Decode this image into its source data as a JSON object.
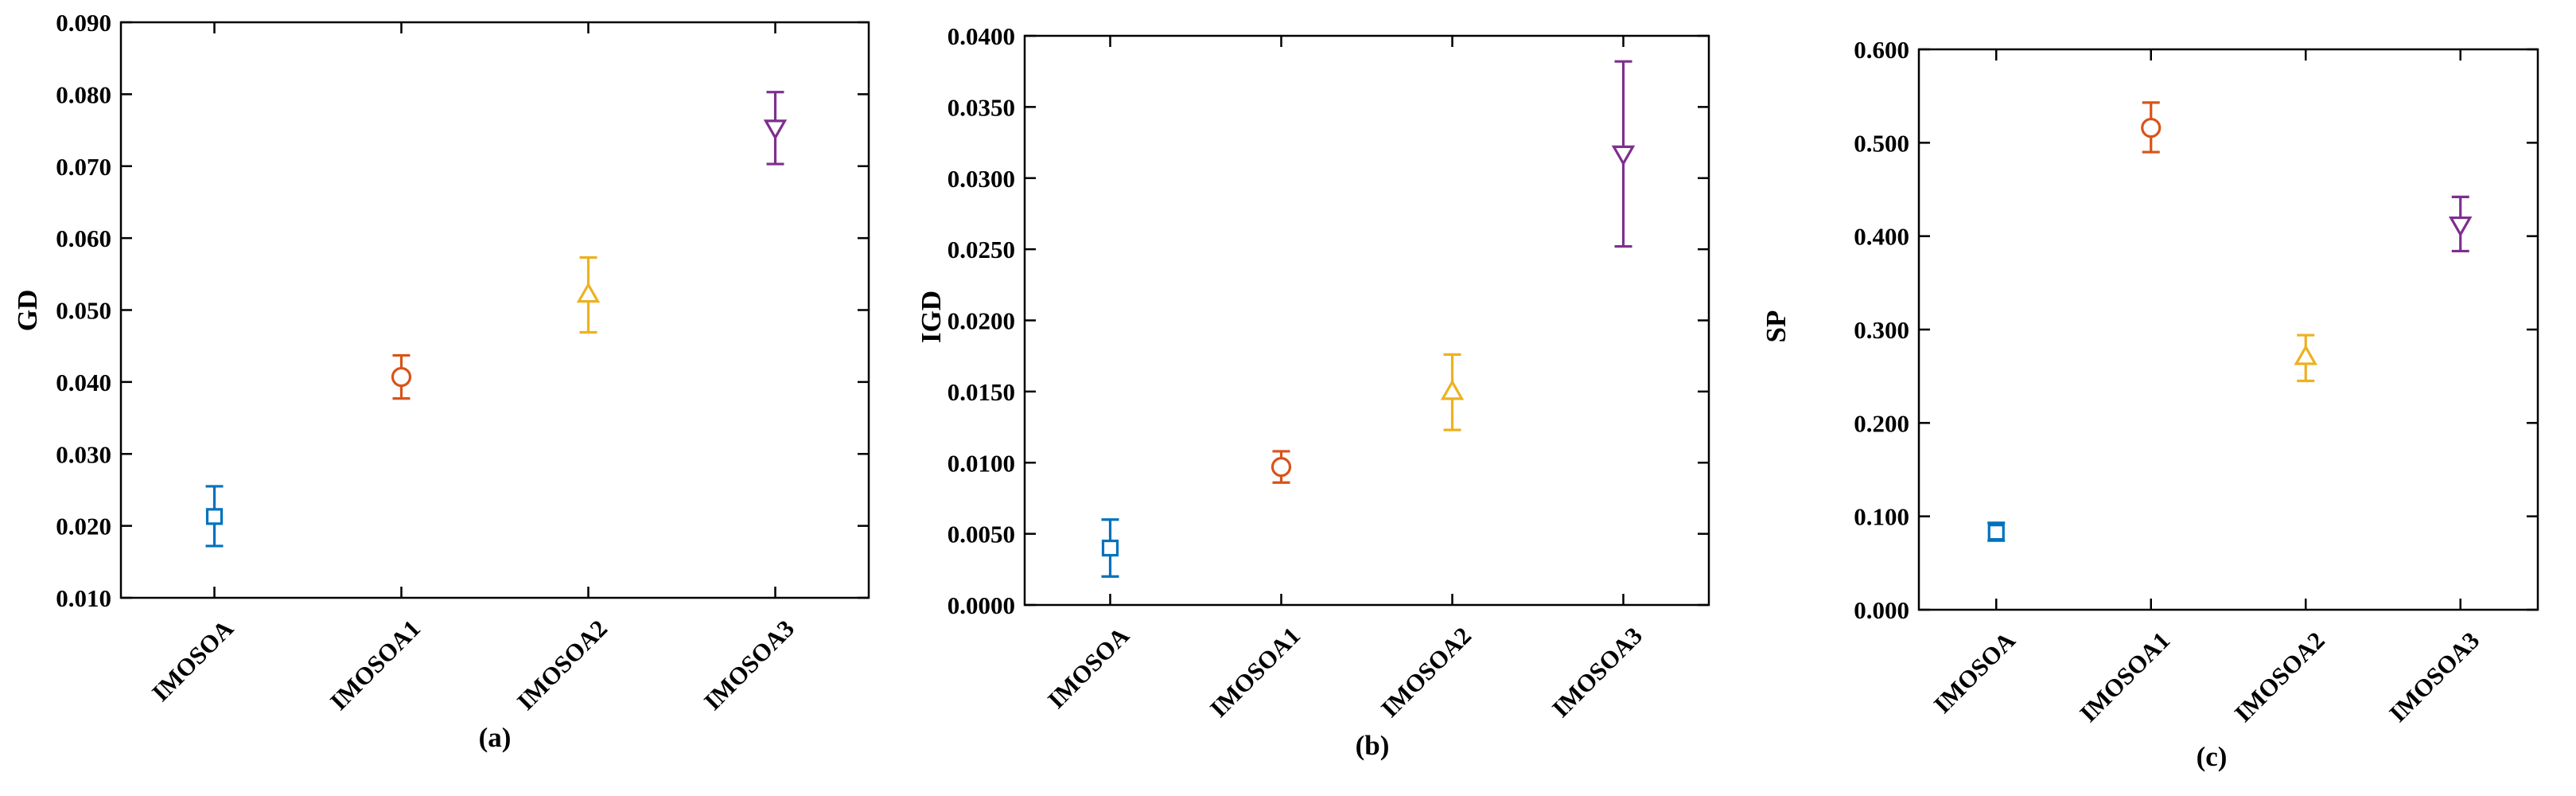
{
  "chart_data": [
    {
      "type": "scatter",
      "panel_label": "(a)",
      "ylabel": "GD",
      "categories": [
        "IMOSOA",
        "IMOSOA1",
        "IMOSOA2",
        "IMOSOA3"
      ],
      "yticks": [
        "0.010",
        "0.020",
        "0.030",
        "0.040",
        "0.050",
        "0.060",
        "0.070",
        "0.080",
        "0.090"
      ],
      "ylim": [
        0.01,
        0.09
      ],
      "points": [
        {
          "category": "IMOSOA",
          "mean": 0.0213,
          "lower": 0.0172,
          "upper": 0.0255,
          "marker": "square",
          "color": "#0072BD"
        },
        {
          "category": "IMOSOA1",
          "mean": 0.0407,
          "lower": 0.0377,
          "upper": 0.0437,
          "marker": "circle",
          "color": "#D95319"
        },
        {
          "category": "IMOSOA2",
          "mean": 0.0522,
          "lower": 0.0469,
          "upper": 0.0573,
          "marker": "triangle-up",
          "color": "#EDB120"
        },
        {
          "category": "IMOSOA3",
          "mean": 0.0753,
          "lower": 0.0703,
          "upper": 0.0803,
          "marker": "triangle-down",
          "color": "#7E2F8E"
        }
      ]
    },
    {
      "type": "scatter",
      "panel_label": "(b)",
      "ylabel": "IGD",
      "categories": [
        "IMOSOA",
        "IMOSOA1",
        "IMOSOA2",
        "IMOSOA3"
      ],
      "yticks": [
        "0.0000",
        "0.0050",
        "0.0100",
        "0.0150",
        "0.0200",
        "0.0250",
        "0.0300",
        "0.0350",
        "0.0400"
      ],
      "ylim": [
        0.0,
        0.04
      ],
      "points": [
        {
          "category": "IMOSOA",
          "mean": 0.004,
          "lower": 0.002,
          "upper": 0.006,
          "marker": "square",
          "color": "#0072BD"
        },
        {
          "category": "IMOSOA1",
          "mean": 0.0097,
          "lower": 0.0086,
          "upper": 0.0108,
          "marker": "circle",
          "color": "#D95319"
        },
        {
          "category": "IMOSOA2",
          "mean": 0.015,
          "lower": 0.0123,
          "upper": 0.0176,
          "marker": "triangle-up",
          "color": "#EDB120"
        },
        {
          "category": "IMOSOA3",
          "mean": 0.0317,
          "lower": 0.0252,
          "upper": 0.0382,
          "marker": "triangle-down",
          "color": "#7E2F8E"
        }
      ]
    },
    {
      "type": "scatter",
      "panel_label": "(c)",
      "ylabel": "SP",
      "categories": [
        "IMOSOA",
        "IMOSOA1",
        "IMOSOA2",
        "IMOSOA3"
      ],
      "yticks": [
        "0.000",
        "0.100",
        "0.200",
        "0.300",
        "0.400",
        "0.500",
        "0.600"
      ],
      "ylim": [
        0.0,
        0.6
      ],
      "points": [
        {
          "category": "IMOSOA",
          "mean": 0.083,
          "lower": 0.074,
          "upper": 0.093,
          "marker": "square",
          "color": "#0072BD"
        },
        {
          "category": "IMOSOA1",
          "mean": 0.516,
          "lower": 0.49,
          "upper": 0.543,
          "marker": "circle",
          "color": "#D95319"
        },
        {
          "category": "IMOSOA2",
          "mean": 0.271,
          "lower": 0.245,
          "upper": 0.294,
          "marker": "triangle-up",
          "color": "#EDB120"
        },
        {
          "category": "IMOSOA3",
          "mean": 0.412,
          "lower": 0.384,
          "upper": 0.442,
          "marker": "triangle-down",
          "color": "#7E2F8E"
        }
      ]
    }
  ]
}
